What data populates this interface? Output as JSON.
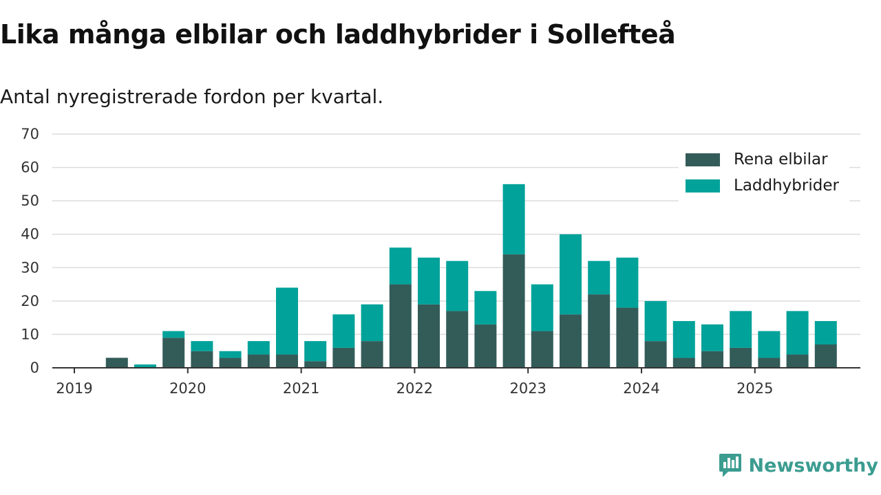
{
  "header": {
    "title": "Lika många elbilar och laddhybrider i Sollefteå",
    "subtitle": "Antal nyregistrerade fordon per kvartal."
  },
  "brand": {
    "name": "Newsworthy",
    "icon": "newsworthy-logo-icon",
    "color": "#3b9c90"
  },
  "chart_data": {
    "type": "bar",
    "stacked": true,
    "title": "Lika många elbilar och laddhybrider i Sollefteå",
    "subtitle": "Antal nyregistrerade fordon per kvartal.",
    "xlabel": "",
    "ylabel": "",
    "ylim": [
      0,
      70
    ],
    "yticks": [
      0,
      10,
      20,
      30,
      40,
      50,
      60,
      70
    ],
    "xlim": [
      0,
      28
    ],
    "xticks": [
      {
        "label": "2019",
        "at": 0
      },
      {
        "label": "2020",
        "at": 4
      },
      {
        "label": "2021",
        "at": 8
      },
      {
        "label": "2022",
        "at": 12
      },
      {
        "label": "2023",
        "at": 16
      },
      {
        "label": "2024",
        "at": 20
      },
      {
        "label": "2025",
        "at": 24
      }
    ],
    "categories": [
      "2019 K1",
      "2019 K2",
      "2019 K3",
      "2019 K4",
      "2020 K1",
      "2020 K2",
      "2020 K3",
      "2020 K4",
      "2021 K1",
      "2021 K2",
      "2021 K3",
      "2021 K4",
      "2022 K1",
      "2022 K2",
      "2022 K3",
      "2022 K4",
      "2023 K1",
      "2023 K2",
      "2023 K3",
      "2023 K4",
      "2024 K1",
      "2024 K2",
      "2024 K3",
      "2024 K4",
      "2025 K1",
      "2025 K2",
      "2025 K3"
    ],
    "series": [
      {
        "name": "Rena elbilar",
        "color": "#335c59",
        "values": [
          0,
          3,
          0,
          9,
          5,
          3,
          4,
          4,
          2,
          6,
          8,
          25,
          19,
          17,
          13,
          34,
          11,
          16,
          22,
          18,
          8,
          3,
          5,
          6,
          3,
          4,
          7
        ]
      },
      {
        "name": "Laddhybrider",
        "color": "#00a29a",
        "values": [
          0,
          0,
          1,
          2,
          3,
          2,
          4,
          20,
          6,
          10,
          11,
          11,
          14,
          15,
          10,
          21,
          14,
          24,
          10,
          15,
          12,
          11,
          8,
          11,
          8,
          13,
          7
        ]
      }
    ],
    "grid": true,
    "legend": "top-right"
  }
}
